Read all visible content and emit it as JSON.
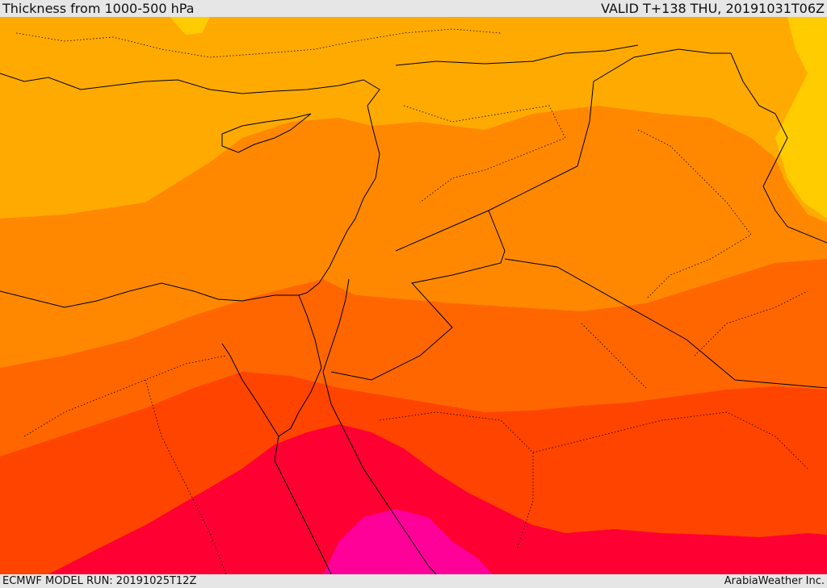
{
  "header": {
    "title": "Thickness from 1000-500 hPa",
    "valid": "VALID T+138 THU, 20191031T06Z"
  },
  "footer": {
    "model_run": "ECMWF MODEL RUN: 20191025T12Z",
    "credit": "ArabiaWeather Inc."
  },
  "colors": {
    "band1": "#ffcc00",
    "band2": "#ffaa00",
    "band3": "#ff8800",
    "band4": "#ff6600",
    "band5": "#ff4400",
    "band6": "#ff0033",
    "band7": "#ff0099",
    "border": "#000000"
  }
}
